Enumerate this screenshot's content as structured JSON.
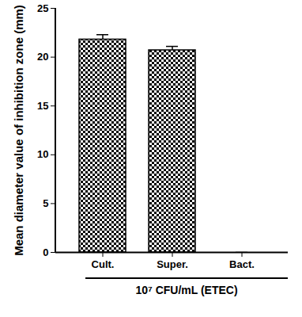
{
  "chart_data": {
    "type": "bar",
    "categories": [
      "Cult.",
      "Super.",
      "Bact."
    ],
    "values": [
      21.8,
      20.7,
      0
    ],
    "errors": [
      0.5,
      0.4,
      0
    ],
    "color": "#000000",
    "y_label": "Mean diameter value of inhibition zone (mm)",
    "x_label": "10⁷ CFU/mL (ETEC)",
    "ylim": [
      0,
      25
    ],
    "yticks": [
      0,
      5,
      10,
      15,
      20,
      25
    ],
    "grid": false
  }
}
